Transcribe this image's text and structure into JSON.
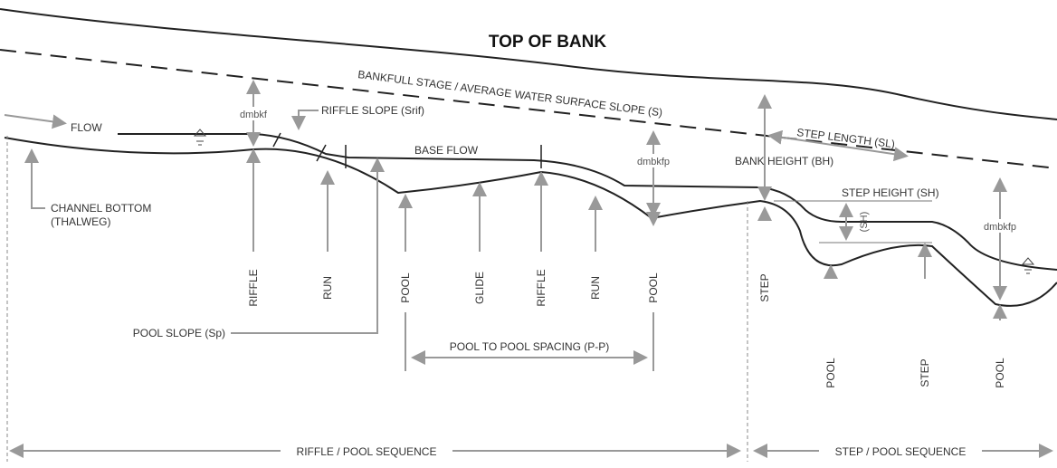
{
  "title": "TOP OF BANK",
  "labels": {
    "bankfull": "BANKFULL STAGE / AVERAGE WATER SURFACE SLOPE (S)",
    "flow": "FLOW",
    "dmbkf": "dmbkf",
    "riffle_slope": "RIFFLE SLOPE (Srif)",
    "base_flow": "BASE FLOW",
    "dmbkfp_1": "dmbkfp",
    "dmbkfp_2": "dmbkfp",
    "bank_height": "BANK HEIGHT (BH)",
    "step_length": "STEP LENGTH (SL)",
    "step_height": "STEP HEIGHT (SH)",
    "sh": "(SH)",
    "channel_bottom": [
      "CHANNEL BOTTOM",
      "(THALWEG)"
    ],
    "pool_slope": "POOL SLOPE (Sp)",
    "pool_spacing": "POOL TO POOL SPACING (P-P)"
  },
  "features": [
    "RIFFLE",
    "RUN",
    "POOL",
    "GLIDE",
    "RIFFLE",
    "RUN",
    "POOL",
    "STEP",
    "POOL",
    "STEP",
    "POOL"
  ],
  "sequences": [
    "RIFFLE / POOL SEQUENCE",
    "STEP / POOL SEQUENCE"
  ]
}
